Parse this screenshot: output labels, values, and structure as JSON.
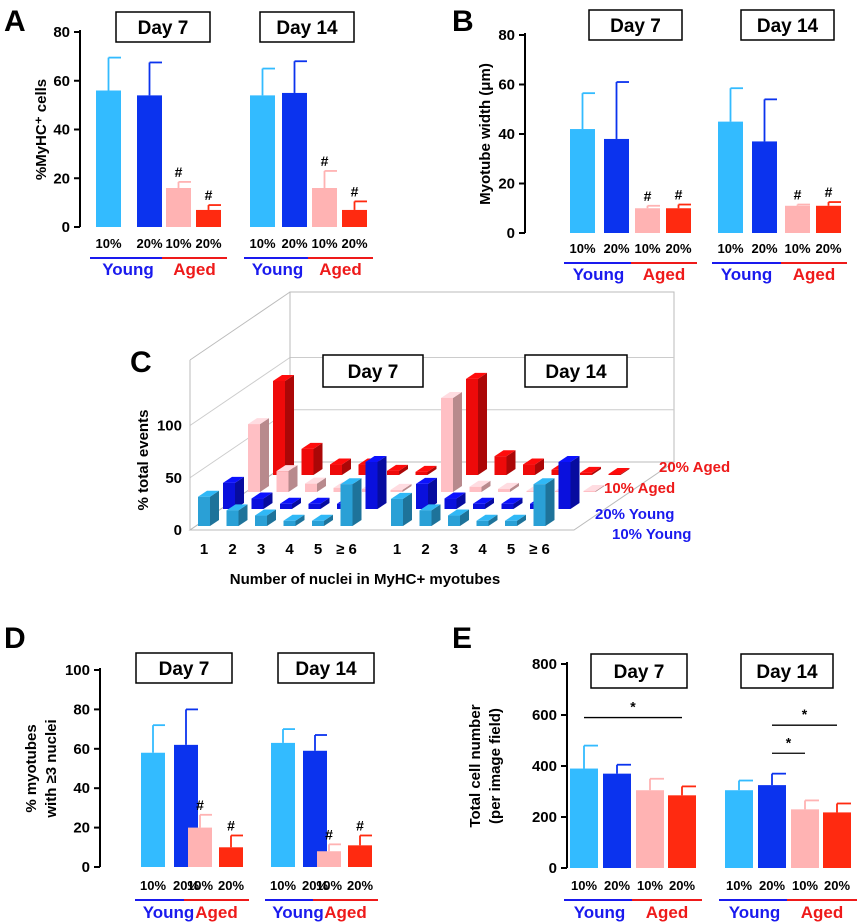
{
  "figure": {
    "panels": [
      "A",
      "B",
      "C",
      "D",
      "E"
    ]
  },
  "colors": {
    "young10": "#33bbff",
    "young20": "#0b33ee",
    "aged10": "#ffb3b3",
    "aged20": "#ff2a10",
    "young_text": "#1a1aee",
    "aged_text": "#ee1a1a",
    "c_young10": "#2aa0d6",
    "c_young20": "#0a10dd",
    "c_aged10": "#ffbfc4",
    "c_aged20": "#ee0a0a"
  },
  "chart_data": [
    {
      "panel": "A",
      "type": "bar",
      "ylabel": "%MyHC⁺ cells",
      "ylim": [
        0,
        80
      ],
      "yticks": [
        0,
        20,
        40,
        60,
        80
      ],
      "days": [
        "Day 7",
        "Day 14"
      ],
      "bar_labels": [
        "10%",
        "20%",
        "10%",
        "20%"
      ],
      "group_labels": [
        "Young",
        "Aged"
      ],
      "series": [
        "10% Young",
        "20% Young",
        "10% Aged",
        "20% Aged"
      ],
      "values": [
        [
          56,
          54,
          16,
          7
        ],
        [
          54,
          55,
          16,
          7
        ]
      ],
      "errors": [
        [
          13.5,
          13.5,
          2.5,
          2
        ],
        [
          11,
          13,
          7,
          3.5
        ]
      ],
      "marks": [
        [
          "",
          "",
          "#",
          "#"
        ],
        [
          "",
          "",
          "#",
          "#"
        ]
      ],
      "brackets": []
    },
    {
      "panel": "B",
      "type": "bar",
      "ylabel": "Myotube width (μm)",
      "ylim": [
        0,
        80
      ],
      "yticks": [
        0,
        20,
        40,
        60,
        80
      ],
      "days": [
        "Day 7",
        "Day 14"
      ],
      "bar_labels": [
        "10%",
        "20%",
        "10%",
        "20%"
      ],
      "group_labels": [
        "Young",
        "Aged"
      ],
      "series": [
        "10% Young",
        "20% Young",
        "10% Aged",
        "20% Aged"
      ],
      "values": [
        [
          42,
          38,
          10,
          10
        ],
        [
          45,
          37,
          11,
          11
        ]
      ],
      "errors": [
        [
          14.5,
          23,
          1,
          1.5
        ],
        [
          13.5,
          17,
          0.5,
          1.5
        ]
      ],
      "marks": [
        [
          "",
          "",
          "#",
          "#"
        ],
        [
          "",
          "",
          "#",
          "#"
        ]
      ],
      "brackets": []
    },
    {
      "panel": "C",
      "type": "bar3d",
      "ylabel": "% total events",
      "xlabel": "Number of nuclei in MyHC+ myotubes",
      "ylim": [
        0,
        100
      ],
      "yticks": [
        0,
        50,
        100
      ],
      "days": [
        "Day 7",
        "Day 14"
      ],
      "categories": [
        "1",
        "2",
        "3",
        "4",
        "5",
        "≥ 6"
      ],
      "series": [
        {
          "name": "10% Young",
          "values": [
            [
              28,
              15,
              10,
              5,
              5,
              40
            ],
            [
              26,
              15,
              10,
              5,
              5,
              40
            ]
          ]
        },
        {
          "name": "20% Young",
          "values": [
            [
              25,
              10,
              5,
              5,
              5,
              45
            ],
            [
              24,
              10,
              5,
              5,
              5,
              45
            ]
          ]
        },
        {
          "name": "10% Aged",
          "values": [
            [
              65,
              20,
              8,
              4,
              3,
              2
            ],
            [
              90,
              5,
              3,
              1,
              1,
              1
            ]
          ]
        },
        {
          "name": "20% Aged",
          "values": [
            [
              90,
              25,
              10,
              10,
              4,
              3
            ],
            [
              92,
              18,
              10,
              5,
              2,
              1
            ]
          ]
        }
      ]
    },
    {
      "panel": "D",
      "type": "bar",
      "ylabel_lines": [
        "% myotubes",
        "with ≥3 nuclei"
      ],
      "ylim": [
        0,
        100
      ],
      "yticks": [
        0,
        20,
        40,
        60,
        80,
        100
      ],
      "days": [
        "Day 7",
        "Day 14"
      ],
      "bar_labels": [
        "10%",
        "20%",
        "10%",
        "20%"
      ],
      "group_labels": [
        "Young",
        "Aged"
      ],
      "series": [
        "10% Young",
        "20% Young",
        "10% Aged",
        "20% Aged"
      ],
      "values": [
        [
          58,
          62,
          20,
          10
        ],
        [
          63,
          59,
          8,
          11
        ]
      ],
      "errors": [
        [
          14,
          18,
          6.5,
          6
        ],
        [
          7,
          8,
          3.5,
          5
        ]
      ],
      "marks": [
        [
          "",
          "",
          "#",
          "#"
        ],
        [
          "",
          "",
          "#",
          "#"
        ]
      ],
      "brackets": []
    },
    {
      "panel": "E",
      "type": "bar",
      "ylabel_lines": [
        "Total cell number",
        "(per image field)"
      ],
      "ylim": [
        0,
        800
      ],
      "yticks": [
        0,
        200,
        400,
        600,
        800
      ],
      "days": [
        "Day 7",
        "Day 14"
      ],
      "bar_labels": [
        "10%",
        "20%",
        "10%",
        "20%"
      ],
      "group_labels": [
        "Young",
        "Aged"
      ],
      "series": [
        "10% Young",
        "20% Young",
        "10% Aged",
        "20% Aged"
      ],
      "values": [
        [
          390,
          370,
          305,
          285
        ],
        [
          305,
          325,
          230,
          218
        ]
      ],
      "errors": [
        [
          90,
          35,
          45,
          35
        ],
        [
          38,
          45,
          35,
          35
        ]
      ],
      "marks": [
        [
          "",
          "",
          "",
          ""
        ],
        [
          "",
          "",
          "",
          ""
        ]
      ],
      "brackets": [
        {
          "day": 0,
          "from": 0,
          "to": 3,
          "value": 590,
          "label": "*"
        },
        {
          "day": 1,
          "from": 1,
          "to": 2,
          "value": 450,
          "label": "*"
        },
        {
          "day": 1,
          "from": 1,
          "to": 3,
          "value": 560,
          "label": "*"
        }
      ]
    }
  ]
}
